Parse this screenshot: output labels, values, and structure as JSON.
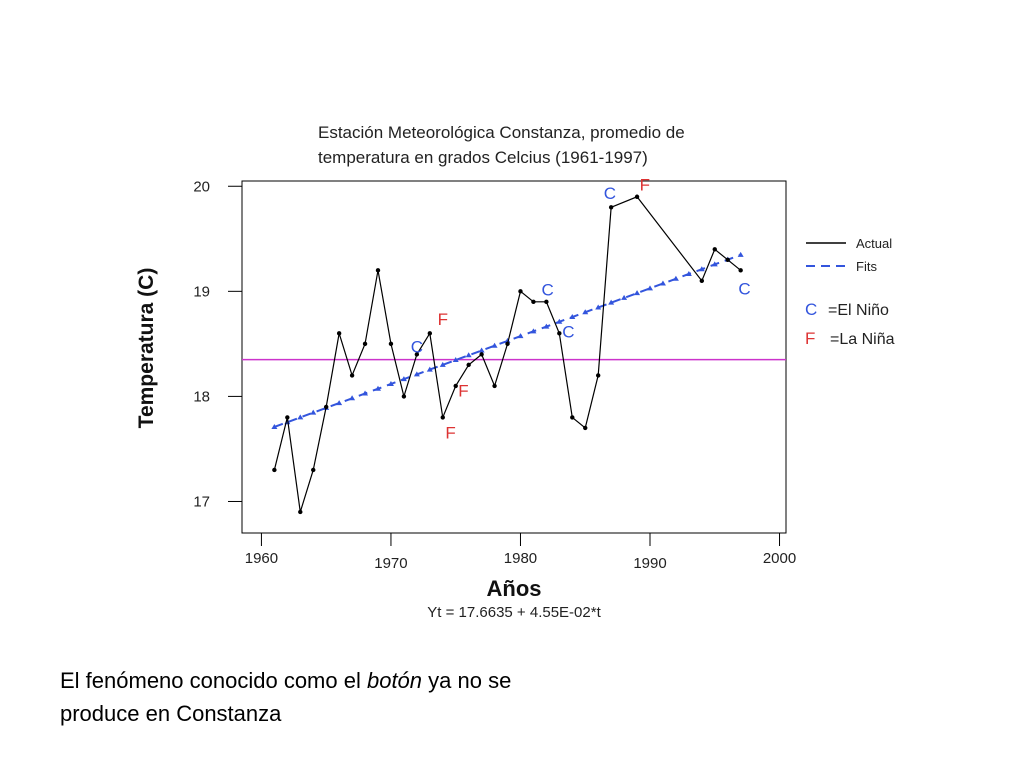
{
  "chart_data": {
    "type": "line",
    "title": [
      "Estación Meteorológica Constanza, promedio de",
      "temperatura en grados Celcius (1961-1997)"
    ],
    "xlabel": "Años",
    "ylabel": "Temperatura (C)",
    "equation": "Yt = 17.6635 + 4.55E-02*t",
    "xlim": [
      1958.5,
      2000.5
    ],
    "ylim": [
      16.7,
      20.05
    ],
    "x_ticks": [
      1960,
      1970,
      1980,
      1990,
      2000
    ],
    "y_ticks": [
      17,
      18,
      19,
      20
    ],
    "reference_line": {
      "y": 18.35,
      "color": "#cc33cc"
    },
    "series": [
      {
        "name": "Actual",
        "color": "#000000",
        "style": "solid",
        "x": [
          1961,
          1962,
          1963,
          1964,
          1965,
          1966,
          1967,
          1968,
          1969,
          1970,
          1971,
          1972,
          1973,
          1974,
          1975,
          1976,
          1977,
          1978,
          1979,
          1980,
          1981,
          1982,
          1983,
          1984,
          1985,
          1986,
          1987,
          1989,
          1994,
          1995,
          1996,
          1997
        ],
        "y": [
          17.3,
          17.8,
          16.9,
          17.3,
          17.9,
          18.6,
          18.2,
          18.5,
          19.2,
          18.5,
          18.0,
          18.4,
          18.6,
          17.8,
          18.1,
          18.3,
          18.4,
          18.1,
          18.5,
          19.0,
          18.9,
          18.9,
          18.6,
          17.8,
          17.7,
          18.2,
          19.8,
          19.9,
          19.1,
          19.4,
          19.3,
          19.2
        ]
      },
      {
        "name": "Fits",
        "color": "#3355dd",
        "style": "dashed",
        "x": [
          1961,
          1997
        ],
        "y": [
          17.709,
          19.347
        ]
      }
    ],
    "legend": [
      {
        "label": "Actual",
        "color": "#000000",
        "style": "solid"
      },
      {
        "label": "Fits",
        "color": "#3355dd",
        "style": "dashed"
      }
    ],
    "annotations": [
      {
        "text": "C",
        "x": 1972.0,
        "y": 18.42,
        "color": "#3355dd"
      },
      {
        "text": "F",
        "x": 1974.0,
        "y": 18.68,
        "color": "#dd3333"
      },
      {
        "text": "F",
        "x": 1975.6,
        "y": 18.0,
        "color": "#dd3333"
      },
      {
        "text": "F",
        "x": 1974.6,
        "y": 17.6,
        "color": "#dd3333"
      },
      {
        "text": "C",
        "x": 1982.1,
        "y": 18.96,
        "color": "#3355dd"
      },
      {
        "text": "C",
        "x": 1983.7,
        "y": 18.56,
        "color": "#3355dd"
      },
      {
        "text": "C",
        "x": 1986.9,
        "y": 19.88,
        "color": "#3355dd"
      },
      {
        "text": "F",
        "x": 1989.6,
        "y": 19.96,
        "color": "#dd3333"
      },
      {
        "text": "C",
        "x": 1997.3,
        "y": 18.97,
        "color": "#3355dd"
      }
    ],
    "key": [
      {
        "symbol": "C",
        "label": "=El Niño",
        "color": "#3355dd"
      },
      {
        "symbol": "F",
        "label": "=La Niña",
        "color": "#dd3333"
      }
    ]
  },
  "caption": {
    "before": "El fenómeno conocido como el ",
    "emphasis": "botón",
    "after": " ya no se produce en Constanza"
  }
}
